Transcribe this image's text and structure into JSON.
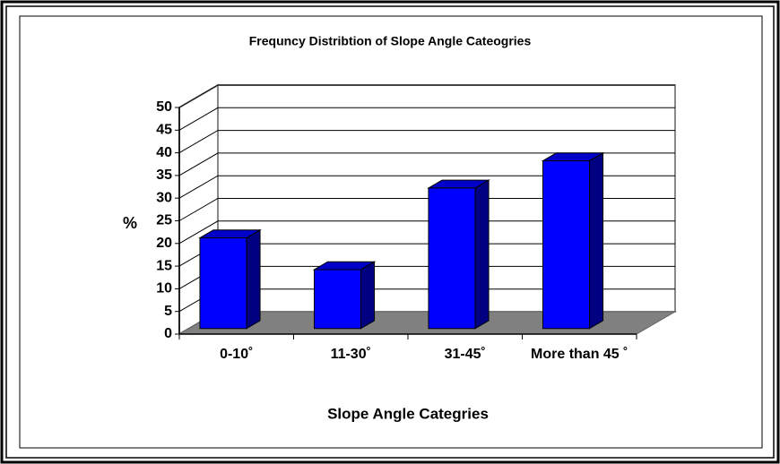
{
  "chart_data": {
    "type": "bar3d",
    "title": "Frequncy Distribtion of Slope Angle Cateogries",
    "x_label": "Slope Angle Categries",
    "y_label": "%",
    "categories": [
      "0-10˚",
      "11-30˚",
      "31-45˚",
      "More than 45 ˚"
    ],
    "values": [
      20,
      13,
      31,
      37
    ],
    "color": "#0000ff",
    "ylim": [
      0,
      50
    ],
    "yticks": [
      0,
      5,
      10,
      15,
      20,
      25,
      30,
      35,
      40,
      45,
      50
    ],
    "grid": true
  }
}
